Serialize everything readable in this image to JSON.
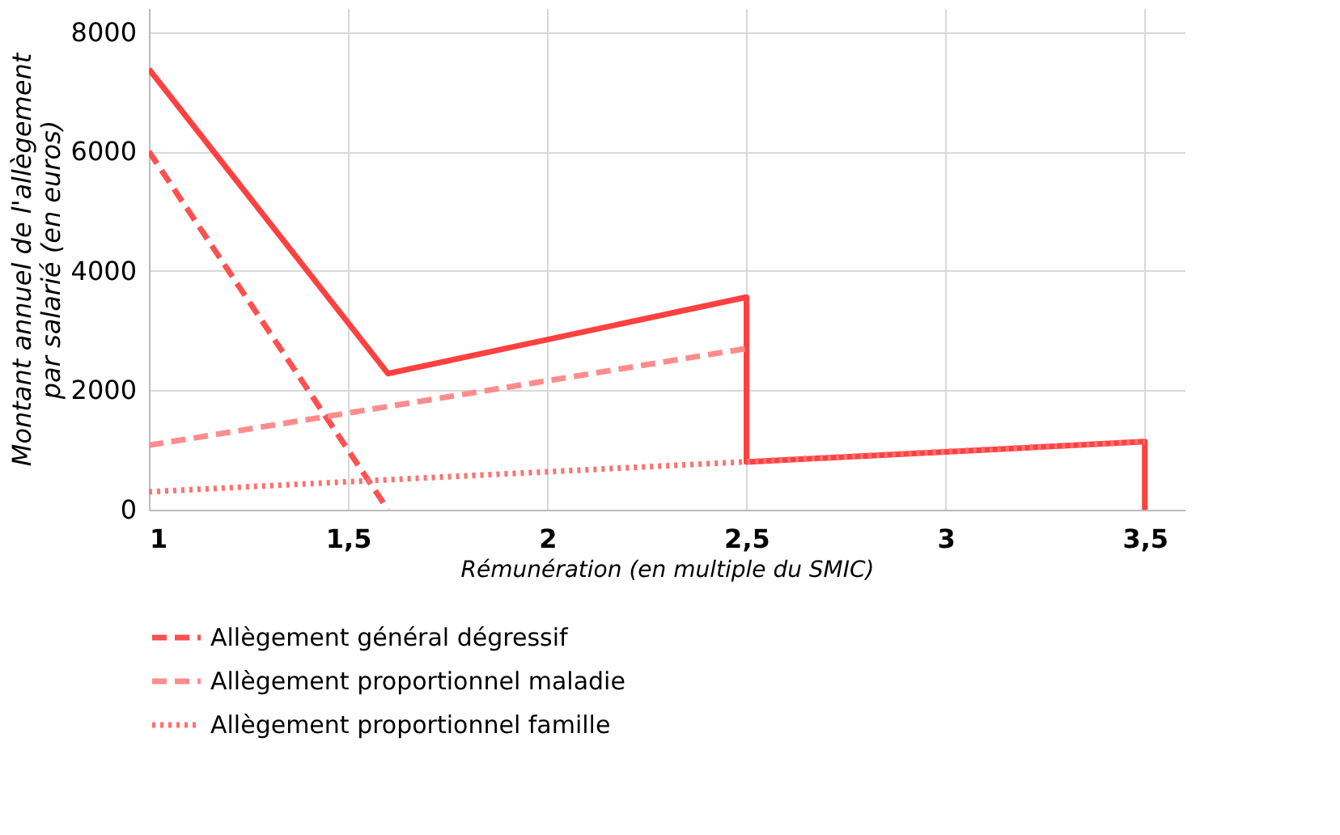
{
  "chart_data": {
    "type": "line",
    "xlabel": "Rémunération (en multiple du SMIC)",
    "ylabel": "Montant annuel de l'allègement\npar salarié (en euros)",
    "xlim": [
      1,
      3.6
    ],
    "xticks": [
      1,
      {
        "value": 1.5,
        "label": "1,5"
      },
      2,
      {
        "value": 2.5,
        "label": "2,5"
      },
      3,
      {
        "value": 3.5,
        "label": "3,5"
      }
    ],
    "ylim": [
      0,
      8400
    ],
    "yticks": [
      0,
      2000,
      4000,
      6000,
      8000
    ],
    "grid": true,
    "legend": "bottom",
    "series": [
      {
        "color": "#ff4040",
        "line_style": "solid",
        "x": [
          1,
          1.6,
          2.5,
          2.5,
          3.5,
          3.5
        ],
        "values": [
          7380,
          2280,
          3560,
          800,
          1140,
          0
        ]
      },
      {
        "name": "Allègement général dégressif",
        "color": "#ff5050",
        "line_style": "dashed",
        "x": [
          1,
          1.6
        ],
        "values": [
          6000,
          0
        ]
      },
      {
        "name": "Allègement proportionnel maladie",
        "color": "#ff8c8c",
        "line_style": "dashed",
        "x": [
          1,
          2.5
        ],
        "values": [
          1080,
          2700
        ]
      },
      {
        "name": "Allègement proportionnel famille",
        "color": "#ff7070",
        "line_style": "dotted",
        "x": [
          1,
          3.5
        ],
        "values": [
          300,
          1140
        ]
      }
    ]
  }
}
